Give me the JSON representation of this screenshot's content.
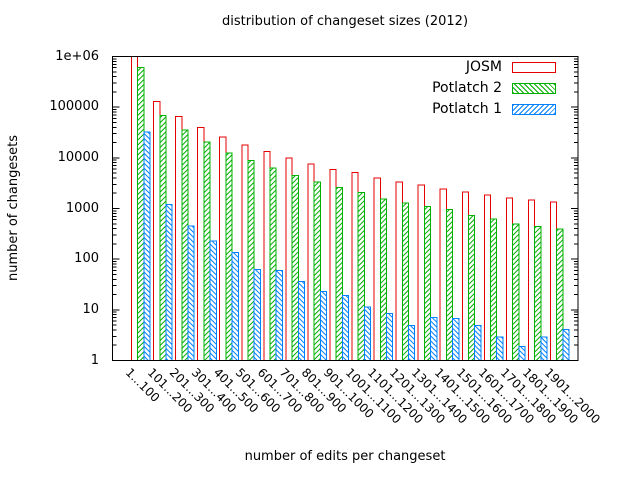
{
  "title": "distribution of changeset sizes (2012)",
  "axes": {
    "xlabel": "number of edits per changeset",
    "ylabel": "number of changesets",
    "y_tick_labels": [
      "1",
      "10",
      "100",
      "1000",
      "10000",
      "100000",
      "1e+06"
    ]
  },
  "legend": {
    "position": "top-right-inside",
    "entries": [
      "JOSM",
      "Potlatch 2",
      "Potlatch 1"
    ]
  },
  "colors": {
    "josm": "#e60000",
    "potlatch2": "#00b000",
    "potlatch1": "#0080ff",
    "frame": "#000000",
    "bar_fill": "#ffffff"
  },
  "chart_data": {
    "type": "bar",
    "title": "distribution of changeset sizes (2012)",
    "xlabel": "number of edits per changeset",
    "ylabel": "number of changesets",
    "y_scale": "log",
    "ylim": [
      1,
      1000000
    ],
    "y_ticks": [
      1,
      10,
      100,
      1000,
      10000,
      100000,
      1000000
    ],
    "grid": false,
    "legend_position": "top-right-inside",
    "categories": [
      "1...100",
      "101...200",
      "201...300",
      "301...400",
      "401...500",
      "501...600",
      "601...700",
      "701...800",
      "801...900",
      "901...1000",
      "1001...1100",
      "1101...1200",
      "1201...1300",
      "1301...1400",
      "1401...1500",
      "1501...1600",
      "1601...1700",
      "1701...1800",
      "1801...1900",
      "1901...2000"
    ],
    "series": [
      {
        "name": "JOSM",
        "color": "#e60000",
        "hatch": "none",
        "values": [
          1000000,
          130000,
          65000,
          40000,
          26000,
          18000,
          13200,
          9900,
          7600,
          5900,
          5100,
          4000,
          3300,
          2900,
          2430,
          2100,
          1850,
          1620,
          1470,
          1330
        ]
      },
      {
        "name": "Potlatch 2",
        "color": "#00b000",
        "hatch": "back-diagonal",
        "values": [
          600000,
          68000,
          35500,
          20400,
          12400,
          8800,
          6300,
          4470,
          3350,
          2600,
          2080,
          1540,
          1270,
          1100,
          960,
          720,
          620,
          495,
          445,
          390
        ]
      },
      {
        "name": "Potlatch 1",
        "color": "#0080ff",
        "hatch": "forward-diagonal",
        "values": [
          32000,
          1200,
          455,
          230,
          135,
          63,
          60,
          36,
          23,
          19,
          11.4,
          8.5,
          4.9,
          7,
          6.8,
          4.9,
          2.9,
          1.9,
          2.9,
          4.1
        ]
      }
    ]
  }
}
